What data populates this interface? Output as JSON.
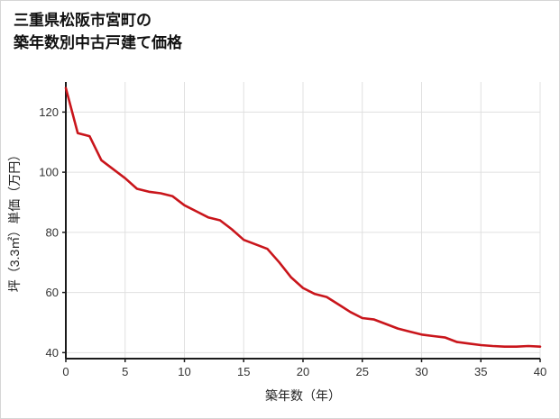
{
  "header": {
    "title_line1": "三重県松阪市宮町の",
    "title_line2": "築年数別中古戸建て価格"
  },
  "chart_data": {
    "type": "line",
    "title": "三重県松阪市宮町の 築年数別中古戸建て価格",
    "xlabel": "築年数（年）",
    "ylabel": "坪（3.3㎡）単価（万円）",
    "x": [
      0,
      1,
      2,
      3,
      4,
      5,
      6,
      7,
      8,
      9,
      10,
      11,
      12,
      13,
      14,
      15,
      16,
      17,
      18,
      19,
      20,
      21,
      22,
      23,
      24,
      25,
      26,
      27,
      28,
      29,
      30,
      31,
      32,
      33,
      34,
      35,
      36,
      37,
      38,
      39,
      40
    ],
    "values": [
      128,
      113,
      112,
      104,
      101,
      98,
      94.5,
      93.5,
      93,
      92,
      89,
      87,
      85,
      84,
      81,
      77.5,
      76,
      74.5,
      70,
      65,
      61.5,
      59.5,
      58.5,
      56,
      53.5,
      51.5,
      51,
      49.5,
      48,
      47,
      46,
      45.5,
      45,
      43.5,
      43,
      42.5,
      42.2,
      42,
      42,
      42.2,
      42
    ],
    "xlim": [
      0,
      40
    ],
    "ylim": [
      38,
      130
    ],
    "xticks": [
      0,
      5,
      10,
      15,
      20,
      25,
      30,
      35,
      40
    ],
    "yticks": [
      40,
      60,
      80,
      100,
      120
    ],
    "grid": true,
    "legend": "none",
    "line_color": "#c9151b",
    "axis_color": "#1a1a1a",
    "grid_color": "#e0e0e0"
  }
}
